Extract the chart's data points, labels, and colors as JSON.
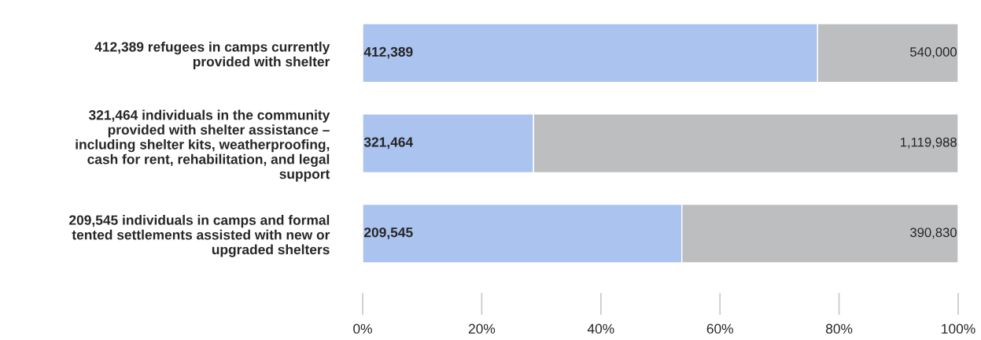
{
  "chart_data": {
    "type": "bar",
    "orientation": "horizontal",
    "stacked": true,
    "categories": [
      "412,389 refugees in camps currently provided with shelter",
      "321,464 individuals in the community provided with shelter assistance – including shelter kits, weatherproofing, cash for rent, rehabilitation, and legal support",
      "209,545 individuals in camps and formal tented settlements assisted with new or upgraded shelters"
    ],
    "series": [
      {
        "color": "#abc3ef",
        "values": [
          76.4,
          28.7,
          53.6
        ]
      },
      {
        "color": "#bdbec0",
        "values": [
          23.6,
          71.3,
          46.4
        ]
      }
    ],
    "annotations": [
      "412,389",
      "540,000",
      "321,464",
      "1,119,988",
      "209,545",
      "390,830"
    ],
    "xlim": [
      0,
      100
    ],
    "xticks": [
      {
        "value": 0,
        "label": "0%"
      },
      {
        "value": 20,
        "label": "20%"
      },
      {
        "value": 40,
        "label": "40%"
      },
      {
        "value": 60,
        "label": "60%"
      },
      {
        "value": 80,
        "label": "80%"
      },
      {
        "value": 100,
        "label": "100%"
      }
    ],
    "grid": false,
    "legend": false
  }
}
